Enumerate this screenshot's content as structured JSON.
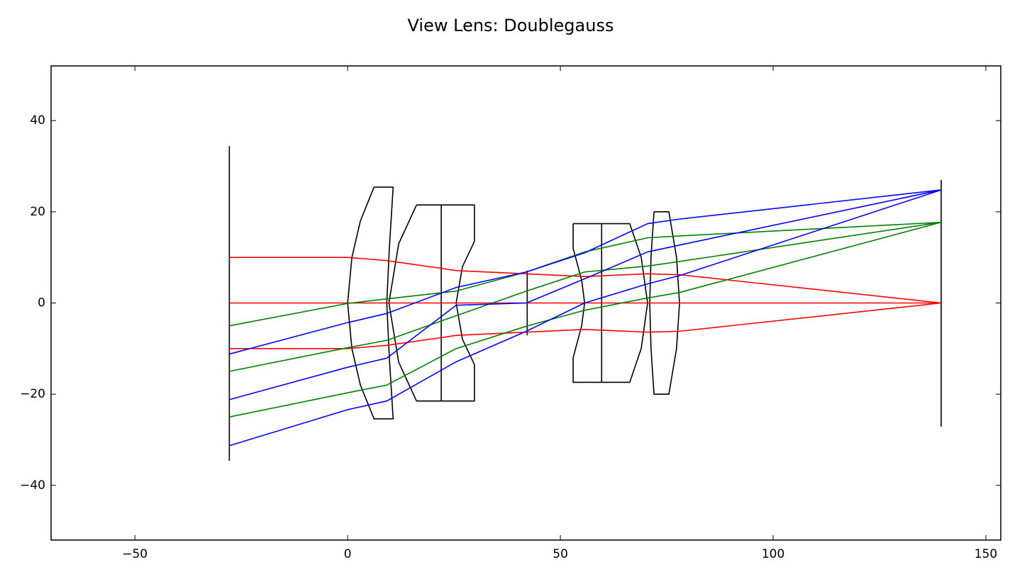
{
  "chart_data": {
    "type": "line",
    "title": "View Lens: Doublegauss",
    "xlim": [
      -69.7,
      153.5
    ],
    "ylim": [
      -52,
      52
    ],
    "xticks": [
      {
        "value": -50,
        "label": "−50"
      },
      0,
      50,
      100,
      150
    ],
    "yticks": [
      {
        "value": -40,
        "label": "−40"
      },
      {
        "value": -20,
        "label": "−20"
      },
      0,
      20,
      40
    ],
    "series": [
      {
        "color": "#000000",
        "x": [
          -27.8,
          -27.8
        ],
        "values": [
          34.4,
          -34.6
        ]
      },
      {
        "color": "#000000",
        "x": [
          139.5,
          139.5
        ],
        "values": [
          27,
          -27.1
        ]
      },
      {
        "color": "#000000",
        "x": [
          42.2,
          42.2
        ],
        "values": [
          7.1,
          -7.1
        ]
      },
      {
        "color": "#000000",
        "x": [
          6.2,
          3.0,
          1.0,
          0,
          1.0,
          3.0,
          6.2,
          10.7,
          9.8,
          9.2,
          9.8,
          10.7,
          6.2
        ],
        "values": [
          25.4,
          18,
          10,
          0,
          -10,
          -18,
          -25.4,
          -25.4,
          -12,
          0,
          12,
          25.4,
          25.4
        ]
      },
      {
        "color": "#000000",
        "x": [
          16.2,
          29.8,
          29.8,
          27,
          25.5,
          27,
          29.8,
          29.8,
          16.2,
          12,
          9.7,
          12,
          16.2
        ],
        "values": [
          21.5,
          21.5,
          13.5,
          8,
          0,
          -8,
          -13.5,
          -21.5,
          -21.5,
          -13,
          0,
          13,
          21.5
        ]
      },
      {
        "color": "#000000",
        "x": [
          22,
          22
        ],
        "values": [
          21.5,
          -21.5
        ]
      },
      {
        "color": "#000000",
        "x": [
          53,
          66.3,
          69,
          70.5,
          69,
          66.3,
          53,
          53,
          55,
          55.7,
          55,
          53,
          53
        ],
        "values": [
          17.4,
          17.4,
          10,
          0,
          -10,
          -17.4,
          -17.4,
          -12,
          -5,
          0,
          5,
          12,
          17.4
        ]
      },
      {
        "color": "#000000",
        "x": [
          59.7,
          59.7
        ],
        "values": [
          17.4,
          -17.4
        ]
      },
      {
        "color": "#000000",
        "x": [
          72,
          75.5,
          77.3,
          78,
          77.3,
          75.5,
          72,
          71.3,
          71,
          71.3,
          72
        ],
        "values": [
          20,
          20,
          10,
          0,
          -10,
          -20,
          -20,
          -10,
          0,
          10,
          20
        ]
      },
      {
        "color": "#ff0000",
        "x": [
          -27.8,
          0,
          9.2,
          22,
          25.5,
          55.7,
          70.5,
          78,
          139.5
        ],
        "values": [
          10,
          10,
          9.3,
          7.6,
          7.1,
          5.8,
          6.4,
          6.2,
          0
        ]
      },
      {
        "color": "#ff0000",
        "x": [
          -27.8,
          139.5
        ],
        "values": [
          0,
          0
        ]
      },
      {
        "color": "#ff0000",
        "x": [
          -27.8,
          0,
          9.2,
          22,
          25.5,
          55.7,
          70.5,
          78,
          139.5
        ],
        "values": [
          -10,
          -10,
          -9.3,
          -7.6,
          -7.1,
          -5.8,
          -6.4,
          -6.2,
          0
        ]
      },
      {
        "color": "#008000",
        "x": [
          -27.8,
          0,
          9.2,
          25.5,
          42,
          55.7,
          70.5,
          78,
          139.5
        ],
        "values": [
          -5,
          -0.1,
          0.9,
          2.6,
          6.8,
          11.2,
          14.3,
          14.7,
          17.7
        ]
      },
      {
        "color": "#008000",
        "x": [
          -27.8,
          0,
          9.2,
          25.5,
          42,
          55.7,
          70.5,
          78,
          139.5
        ],
        "values": [
          -15,
          -9.8,
          -8.2,
          -2.8,
          2.6,
          6.8,
          8.1,
          9.1,
          17.7
        ]
      },
      {
        "color": "#008000",
        "x": [
          -27.8,
          0,
          9.2,
          25.5,
          42,
          55.7,
          70.5,
          78,
          139.5
        ],
        "values": [
          -25,
          -19.7,
          -18,
          -10,
          -5.1,
          -1.6,
          1.1,
          2.3,
          17.7
        ]
      },
      {
        "color": "#0000ff",
        "x": [
          -27.8,
          0,
          9.2,
          25.5,
          42,
          55.7,
          70.5,
          78,
          139.5
        ],
        "values": [
          -11.2,
          -4.3,
          -2.3,
          3.4,
          6.8,
          11,
          17.4,
          18.4,
          24.8
        ]
      },
      {
        "color": "#0000ff",
        "x": [
          -27.8,
          0,
          9.2,
          25.5,
          42,
          55.7,
          70.5,
          78,
          139.5
        ],
        "values": [
          -21.2,
          -14.1,
          -12.1,
          -0.5,
          0,
          5.3,
          11.2,
          12.7,
          24.8
        ]
      },
      {
        "color": "#0000ff",
        "x": [
          -27.8,
          0,
          9.2,
          25.5,
          42,
          55.7,
          70.5,
          78,
          139.5
        ],
        "values": [
          -31.3,
          -23.4,
          -21.5,
          -12.9,
          -6.2,
          0,
          4.2,
          6,
          24.8
        ]
      }
    ]
  }
}
